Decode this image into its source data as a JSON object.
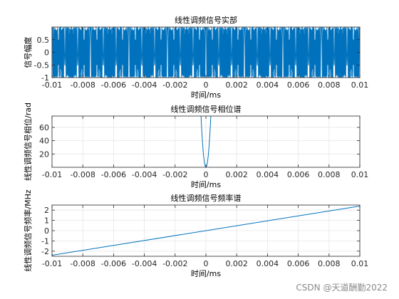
{
  "colors": {
    "line": "#0072bd",
    "grid": "#e6e6e6",
    "axis": "#262626",
    "background": "#ffffff"
  },
  "watermark": "CSDN @天道酬勤2022",
  "chart_data": [
    {
      "type": "line",
      "title": "线性调频信号实部",
      "xlabel": "时间/ms",
      "ylabel": "信号幅度",
      "xlim": [
        -0.01,
        0.01
      ],
      "ylim": [
        -1,
        1
      ],
      "xticks": [
        -0.01,
        -0.008,
        -0.006,
        -0.004,
        -0.002,
        0,
        0.002,
        0.004,
        0.006,
        0.008,
        0.01
      ],
      "xtick_labels": [
        "-0.01",
        "-0.008",
        "-0.006",
        "-0.004",
        "-0.002",
        "0",
        "0.002",
        "0.004",
        "0.006",
        "0.008",
        "0.01"
      ],
      "yticks": [
        -1,
        -0.5,
        0,
        0.5
      ],
      "ytick_labels": [
        "-1",
        "-0.5",
        "0",
        "0.5"
      ],
      "grid": true,
      "series": [
        {
          "function": "cos(pi * 240000000 * t^2)",
          "x_range": [
            -0.01,
            0.01
          ]
        }
      ]
    },
    {
      "type": "line",
      "title": "线性调频信号相位谱",
      "xlabel": "时间/ms",
      "ylabel": "线性调频信号相位/rad",
      "xlim": [
        -0.01,
        0.01
      ],
      "ylim": [
        0,
        77
      ],
      "xticks": [
        -0.01,
        -0.008,
        -0.006,
        -0.004,
        -0.002,
        0,
        0.002,
        0.004,
        0.006,
        0.008,
        0.01
      ],
      "xtick_labels": [
        "-0.01",
        "-0.008",
        "-0.006",
        "-0.004",
        "-0.002",
        "0",
        "0.002",
        "0.004",
        "0.006",
        "0.008",
        "0.01"
      ],
      "yticks": [
        20,
        40,
        60
      ],
      "ytick_labels": [
        "20",
        "40",
        "60"
      ],
      "grid": true,
      "series": [
        {
          "function": "pi * 240000000 * t^2",
          "x_range": [
            -0.01,
            0.01
          ]
        }
      ]
    },
    {
      "type": "line",
      "title": "线性调频信号频率谱",
      "xlabel": "时间/ms",
      "ylabel": "线性调频信号频率/MHz",
      "xlim": [
        -0.01,
        0.01
      ],
      "ylim": [
        -2.5,
        2.5
      ],
      "xticks": [
        -0.01,
        -0.008,
        -0.006,
        -0.004,
        -0.002,
        0,
        0.002,
        0.004,
        0.006,
        0.008,
        0.01
      ],
      "xtick_labels": [
        "-0.01",
        "-0.008",
        "-0.006",
        "-0.004",
        "-0.002",
        "0",
        "0.002",
        "0.004",
        "0.006",
        "0.008",
        "0.01"
      ],
      "yticks": [
        -2,
        -1,
        0,
        1,
        2
      ],
      "ytick_labels": [
        "-2",
        "-1",
        "0",
        "1",
        "2"
      ],
      "grid": true,
      "series": [
        {
          "x": [
            -0.01,
            0.01
          ],
          "y": [
            -2.4,
            2.4
          ]
        }
      ]
    }
  ]
}
